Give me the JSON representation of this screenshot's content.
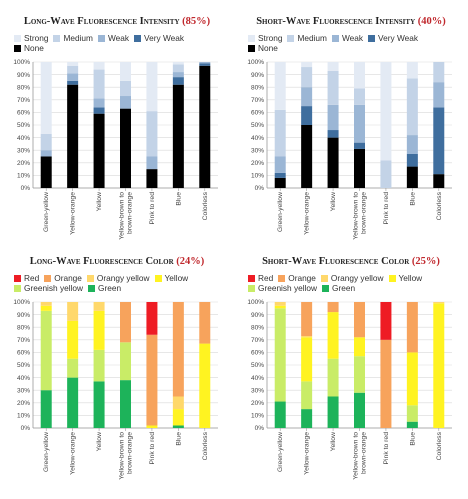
{
  "chart_data": [
    {
      "type": "bar",
      "stacked": true,
      "title": "Long-Wave Fluorescence Intensity",
      "title_pct": "(85%)",
      "legend_position": "top",
      "ylim": [
        0,
        100
      ],
      "yticks": [
        "0%",
        "10%",
        "20%",
        "30%",
        "40%",
        "50%",
        "60%",
        "70%",
        "80%",
        "90%",
        "100%"
      ],
      "categories": [
        "Green-yellow",
        "Yellow-orange",
        "Yellow",
        "Yellow-brown to brown-orange",
        "Pink to red",
        "Blue",
        "Colorless"
      ],
      "series": [
        {
          "name": "None",
          "color": "#000000",
          "values": [
            25,
            82,
            59,
            63,
            15,
            82,
            97
          ]
        },
        {
          "name": "Very Weak",
          "color": "#3f6e9e",
          "values": [
            0,
            3,
            5,
            0,
            0,
            6,
            2
          ]
        },
        {
          "name": "Weak",
          "color": "#9bb6d5",
          "values": [
            5,
            6,
            7,
            10,
            10,
            4,
            1
          ]
        },
        {
          "name": "Medium",
          "color": "#c3d3e7",
          "values": [
            13,
            6,
            23,
            12,
            36,
            6,
            0
          ]
        },
        {
          "name": "Strong",
          "color": "#e3eaf4",
          "values": [
            57,
            3,
            6,
            15,
            39,
            2,
            0
          ]
        }
      ],
      "legend_rows": [
        [
          "Strong",
          "Medium",
          "Weak",
          "Very Weak"
        ],
        [
          "None"
        ]
      ]
    },
    {
      "type": "bar",
      "stacked": true,
      "title": "Short-Wave Fluorescence Intensity",
      "title_pct": "(40%)",
      "legend_position": "top",
      "ylim": [
        0,
        100
      ],
      "yticks": [
        "0%",
        "10%",
        "20%",
        "30%",
        "40%",
        "50%",
        "60%",
        "70%",
        "80%",
        "90%",
        "100%"
      ],
      "categories": [
        "Green-yellow",
        "Yellow-orange",
        "Yellow",
        "Yellow-brown to brown-orange",
        "Pink to red",
        "Blue",
        "Colorless"
      ],
      "series": [
        {
          "name": "None",
          "color": "#000000",
          "values": [
            8,
            50,
            40,
            31,
            0,
            17,
            11
          ]
        },
        {
          "name": "Very Weak",
          "color": "#3f6e9e",
          "values": [
            4,
            15,
            6,
            5,
            0,
            10,
            53
          ]
        },
        {
          "name": "Weak",
          "color": "#9bb6d5",
          "values": [
            13,
            15,
            20,
            30,
            0,
            15,
            20
          ]
        },
        {
          "name": "Medium",
          "color": "#c3d3e7",
          "values": [
            37,
            16,
            27,
            13,
            22,
            45,
            16
          ]
        },
        {
          "name": "Strong",
          "color": "#e3eaf4",
          "values": [
            38,
            4,
            7,
            21,
            78,
            13,
            0
          ]
        }
      ],
      "legend_rows": [
        [
          "Strong",
          "Medium",
          "Weak",
          "Very Weak"
        ],
        [
          "None"
        ]
      ]
    },
    {
      "type": "bar",
      "stacked": true,
      "title": "Long-Wave Fluorescence Color",
      "title_pct": "(24%)",
      "legend_position": "top",
      "ylim": [
        0,
        100
      ],
      "yticks": [
        "0%",
        "10%",
        "20%",
        "30%",
        "40%",
        "50%",
        "60%",
        "70%",
        "80%",
        "90%",
        "100%"
      ],
      "categories": [
        "Green-yellow",
        "Yellow-orange",
        "Yellow",
        "Yellow-brown to brown-orange",
        "Pink to red",
        "Blue",
        "Colorless"
      ],
      "series": [
        {
          "name": "Green",
          "color": "#1db35a",
          "values": [
            30,
            40,
            37,
            38,
            0,
            2,
            0
          ]
        },
        {
          "name": "Greenish yellow",
          "color": "#c9ec67",
          "values": [
            63,
            15,
            25,
            30,
            0,
            0,
            0
          ]
        },
        {
          "name": "Yellow",
          "color": "#fff321",
          "values": [
            4,
            30,
            31,
            0,
            2,
            13,
            67
          ]
        },
        {
          "name": "Orangy yellow",
          "color": "#ffd86b",
          "values": [
            3,
            15,
            7,
            0,
            0,
            10,
            0
          ]
        },
        {
          "name": "Orange",
          "color": "#f7a35c",
          "values": [
            0,
            0,
            0,
            32,
            72,
            75,
            33
          ]
        },
        {
          "name": "Red",
          "color": "#ee1c24",
          "values": [
            0,
            0,
            0,
            0,
            26,
            0,
            0
          ]
        }
      ],
      "legend_rows": [
        [
          "Red",
          "Orange",
          "Orangy yellow",
          "Yellow"
        ],
        [
          "Greenish yellow",
          "Green"
        ]
      ]
    },
    {
      "type": "bar",
      "stacked": true,
      "title": "Short-Wave Fluorescence Color",
      "title_pct": "(25%)",
      "legend_position": "top",
      "ylim": [
        0,
        100
      ],
      "yticks": [
        "0%",
        "10%",
        "20%",
        "30%",
        "40%",
        "50%",
        "60%",
        "70%",
        "80%",
        "90%",
        "100%"
      ],
      "categories": [
        "Green-yellow",
        "Yellow-orange",
        "Yellow",
        "Yellow-brown to brown-orange",
        "Pink to red",
        "Blue",
        "Colorless"
      ],
      "series": [
        {
          "name": "Green",
          "color": "#1db35a",
          "values": [
            21,
            15,
            25,
            28,
            0,
            5,
            0
          ]
        },
        {
          "name": "Greenish yellow",
          "color": "#c9ec67",
          "values": [
            74,
            22,
            30,
            29,
            0,
            13,
            0
          ]
        },
        {
          "name": "Yellow",
          "color": "#fff321",
          "values": [
            2,
            35,
            37,
            15,
            0,
            42,
            99
          ]
        },
        {
          "name": "Orangy yellow",
          "color": "#ffd86b",
          "values": [
            3,
            1,
            0,
            0,
            0,
            0,
            1
          ]
        },
        {
          "name": "Orange",
          "color": "#f7a35c",
          "values": [
            0,
            27,
            8,
            28,
            70,
            40,
            0
          ]
        },
        {
          "name": "Red",
          "color": "#ee1c24",
          "values": [
            0,
            0,
            0,
            0,
            30,
            0,
            0
          ]
        }
      ],
      "legend_rows": [
        [
          "Red",
          "Orange",
          "Orangy yellow",
          "Yellow"
        ],
        [
          "Greenish yellow",
          "Green"
        ]
      ]
    }
  ]
}
